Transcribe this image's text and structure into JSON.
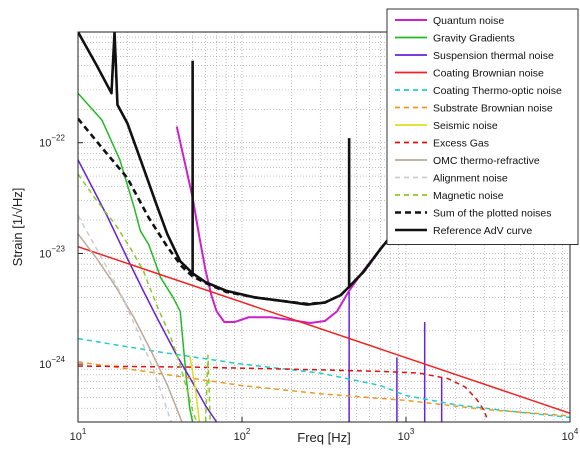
{
  "chart_data": {
    "type": "line",
    "title": "",
    "xlabel": "Freq [Hz]",
    "ylabel": "Strain [1/√Hz]",
    "x_scale": "log",
    "y_scale": "log",
    "xlim": [
      10,
      10000
    ],
    "ylim": [
      3e-25,
      1e-21
    ],
    "grid": true,
    "legend_position": "top-right",
    "x_ticks": [
      {
        "value": 10,
        "base": "10",
        "exp": "1"
      },
      {
        "value": 100,
        "base": "10",
        "exp": "2"
      },
      {
        "value": 1000,
        "base": "10",
        "exp": "3"
      },
      {
        "value": 10000,
        "base": "10",
        "exp": "4"
      }
    ],
    "y_ticks": [
      {
        "value": 1e-24,
        "base": "10",
        "exp": "−24"
      },
      {
        "value": 1e-23,
        "base": "10",
        "exp": "−23"
      },
      {
        "value": 1e-22,
        "base": "10",
        "exp": "−22"
      }
    ],
    "series": [
      {
        "name": "Quantum noise",
        "color": "#cc22cc",
        "width": 2.0,
        "dash": "",
        "points": [
          [
            40,
            1.4e-22
          ],
          [
            50,
            3.2e-23
          ],
          [
            55,
            1.4e-23
          ],
          [
            60,
            7e-24
          ],
          [
            65,
            4.2e-24
          ],
          [
            70,
            3e-24
          ],
          [
            78,
            2.4e-24
          ],
          [
            90,
            2.4e-24
          ],
          [
            110,
            2.65e-24
          ],
          [
            150,
            2.65e-24
          ],
          [
            200,
            2.5e-24
          ],
          [
            260,
            2.35e-24
          ],
          [
            320,
            2.45e-24
          ],
          [
            380,
            3e-24
          ],
          [
            450,
            4.6e-24
          ],
          [
            550,
            7e-24
          ],
          [
            700,
            1.1e-23
          ],
          [
            800,
            1.4e-23
          ]
        ]
      },
      {
        "name": "Gravity Gradients",
        "color": "#22bb22",
        "width": 1.5,
        "dash": "",
        "points": [
          [
            10,
            2.8e-22
          ],
          [
            14,
            1.6e-22
          ],
          [
            18,
            7e-23
          ],
          [
            22,
            2.6e-23
          ],
          [
            24,
            1.6e-23
          ],
          [
            27,
            1.2e-23
          ],
          [
            32,
            6e-24
          ],
          [
            38,
            4e-24
          ],
          [
            42,
            3e-24
          ],
          [
            44,
            1.4e-24
          ],
          [
            46,
            7e-25
          ],
          [
            48,
            4e-25
          ],
          [
            50,
            3e-25
          ]
        ]
      },
      {
        "name": "Suspension thermal noise",
        "color": "#6622dd",
        "width": 1.5,
        "dash": "",
        "points": [
          [
            10,
            7e-23
          ],
          [
            15,
            2.2e-23
          ],
          [
            20,
            9e-24
          ],
          [
            25,
            4.6e-24
          ],
          [
            30,
            2.7e-24
          ],
          [
            40,
            1.2e-24
          ],
          [
            50,
            6.8e-25
          ],
          [
            60,
            4.2e-25
          ],
          [
            70,
            3e-25
          ]
        ]
      },
      {
        "name": "Suspension thermal noise",
        "color": "#6622dd",
        "width": 1.5,
        "dash": "",
        "points": [
          [
            450,
            3e-25
          ],
          [
            450,
            4.5e-24
          ]
        ]
      },
      {
        "name": "Suspension thermal noise",
        "color": "#6622dd",
        "width": 1.5,
        "dash": "",
        "points": [
          [
            880,
            3e-25
          ],
          [
            880,
            1.15e-24
          ]
        ]
      },
      {
        "name": "Suspension thermal noise",
        "color": "#6622dd",
        "width": 1.5,
        "dash": "",
        "points": [
          [
            1300,
            3e-25
          ],
          [
            1300,
            2.4e-24
          ]
        ]
      },
      {
        "name": "Suspension thermal noise",
        "color": "#6622dd",
        "width": 1.5,
        "dash": "",
        "points": [
          [
            1650,
            3e-25
          ],
          [
            1650,
            7.5e-25
          ]
        ]
      },
      {
        "name": "Coating Brownian noise",
        "color": "#ee2222",
        "width": 1.5,
        "dash": "",
        "points": [
          [
            10,
            1.15e-23
          ],
          [
            10000,
            3.6e-25
          ]
        ]
      },
      {
        "name": "Coating Thermo-optic noise",
        "color": "#22cccc",
        "width": 1.5,
        "dash": "5,4",
        "points": [
          [
            10,
            1.7e-24
          ],
          [
            30,
            1.3e-24
          ],
          [
            100,
            1e-24
          ],
          [
            300,
            8.3e-25
          ],
          [
            700,
            6.4e-25
          ],
          [
            1000,
            5.2e-25
          ],
          [
            2000,
            4.3e-25
          ],
          [
            4000,
            3.8e-25
          ],
          [
            10000,
            3.3e-25
          ]
        ]
      },
      {
        "name": "Substrate Brownian noise",
        "color": "#ee9922",
        "width": 1.5,
        "dash": "5,4",
        "points": [
          [
            10,
            1.05e-24
          ],
          [
            30,
            8.3e-25
          ],
          [
            100,
            6.4e-25
          ],
          [
            300,
            5.4e-25
          ],
          [
            1000,
            4.7e-25
          ],
          [
            3000,
            3.9e-25
          ],
          [
            10000,
            3.4e-25
          ]
        ]
      },
      {
        "name": "Seismic noise",
        "color": "#dddd22",
        "width": 1.5,
        "dash": "",
        "points": [
          [
            48,
            1.2e-24
          ],
          [
            52,
            6e-25
          ],
          [
            55,
            3e-25
          ]
        ]
      },
      {
        "name": "Excess Gas",
        "color": "#dd1111",
        "width": 1.5,
        "dash": "5,4",
        "points": [
          [
            10,
            9.6e-25
          ],
          [
            50,
            9.4e-25
          ],
          [
            200,
            9e-25
          ],
          [
            700,
            8.6e-25
          ],
          [
            1200,
            8.3e-25
          ],
          [
            1800,
            7.4e-25
          ],
          [
            2300,
            6.2e-25
          ],
          [
            2700,
            4.8e-25
          ],
          [
            3000,
            3.8e-25
          ],
          [
            3100,
            3.3e-25
          ]
        ]
      },
      {
        "name": "OMC thermo-refractive",
        "color": "#bbaa99",
        "width": 1.5,
        "dash": "",
        "points": [
          [
            10,
            1.5e-23
          ],
          [
            13,
            9e-24
          ],
          [
            17,
            5e-24
          ],
          [
            22,
            2.6e-24
          ],
          [
            28,
            1.3e-24
          ],
          [
            35,
            6.5e-25
          ],
          [
            42,
            3.3e-25
          ],
          [
            43,
            3e-25
          ]
        ]
      },
      {
        "name": "Alignment noise",
        "color": "#cccccc",
        "width": 1.5,
        "dash": "5,4",
        "points": [
          [
            10,
            2.2e-23
          ],
          [
            14,
            9e-24
          ],
          [
            18,
            4.5e-24
          ],
          [
            23,
            2e-24
          ],
          [
            28,
            1e-24
          ],
          [
            33,
            5e-25
          ],
          [
            37,
            3e-25
          ]
        ]
      },
      {
        "name": "Magnetic noise",
        "color": "#88cc22",
        "width": 1.5,
        "dash": "5,4",
        "points": [
          [
            10,
            5.2e-23
          ],
          [
            13,
            3e-23
          ],
          [
            17,
            1.8e-23
          ],
          [
            21,
            1.1e-23
          ],
          [
            25,
            7e-24
          ],
          [
            27,
            5.2e-24
          ],
          [
            31,
            3.1e-24
          ],
          [
            36,
            1.9e-24
          ],
          [
            41,
            1.1e-24
          ],
          [
            46,
            6e-25
          ],
          [
            50,
            3.8e-25
          ],
          [
            53,
            3e-25
          ]
        ]
      },
      {
        "name": "Magnetic noise",
        "color": "#88cc22",
        "width": 1.5,
        "dash": "5,4",
        "points": [
          [
            60,
            3e-25
          ],
          [
            62,
            1.2e-24
          ],
          [
            64,
            3e-25
          ]
        ]
      },
      {
        "name": "Sum of the plotted noises",
        "color": "#111111",
        "width": 2.6,
        "dash": "6,4",
        "points": [
          [
            10,
            1.65e-22
          ],
          [
            14,
            9e-23
          ],
          [
            20,
            4.8e-23
          ],
          [
            27,
            2.1e-23
          ],
          [
            35,
            1.15e-23
          ],
          [
            43,
            7.6e-24
          ],
          [
            50,
            6.2e-24
          ],
          [
            60,
            5.4e-24
          ],
          [
            80,
            4.5e-24
          ],
          [
            120,
            4e-24
          ],
          [
            180,
            3.7e-24
          ],
          [
            250,
            3.5e-24
          ],
          [
            320,
            3.6e-24
          ],
          [
            400,
            4.2e-24
          ],
          [
            450,
            5e-24
          ],
          [
            550,
            6.8e-24
          ],
          [
            700,
            1.1e-23
          ],
          [
            800,
            1.4e-23
          ]
        ]
      },
      {
        "name": "Reference AdV curve",
        "color": "#111111",
        "width": 2.6,
        "dash": "",
        "points": [
          [
            10,
            1e-21
          ],
          [
            13,
            5e-22
          ],
          [
            16,
            2.8e-22
          ],
          [
            16.7,
            1e-21
          ],
          [
            17.4,
            2.2e-22
          ],
          [
            20,
            1.5e-22
          ],
          [
            25,
            6e-23
          ],
          [
            30,
            2.8e-23
          ],
          [
            35,
            1.5e-23
          ],
          [
            42,
            8.5e-24
          ],
          [
            50,
            6.6e-24
          ],
          [
            60,
            5.5e-24
          ],
          [
            80,
            4.6e-24
          ],
          [
            120,
            4e-24
          ],
          [
            180,
            3.7e-24
          ],
          [
            250,
            3.45e-24
          ],
          [
            320,
            3.6e-24
          ],
          [
            400,
            4.2e-24
          ],
          [
            450,
            5e-24
          ],
          [
            550,
            6.8e-24
          ],
          [
            700,
            1.1e-23
          ],
          [
            800,
            1.4e-23
          ]
        ]
      },
      {
        "name": "Reference AdV curve",
        "color": "#111111",
        "width": 2.6,
        "dash": "",
        "points": [
          [
            50,
            5.5e-22
          ],
          [
            50,
            6.2e-24
          ]
        ]
      },
      {
        "name": "Reference AdV curve",
        "color": "#111111",
        "width": 2.6,
        "dash": "",
        "points": [
          [
            450,
            1.1e-22
          ],
          [
            450,
            5e-24
          ]
        ]
      }
    ],
    "legend": [
      {
        "label": "Quantum noise",
        "color": "#cc22cc",
        "dash": "",
        "width": 2.0
      },
      {
        "label": "Gravity Gradients",
        "color": "#22bb22",
        "dash": "",
        "width": 1.8
      },
      {
        "label": "Suspension thermal noise",
        "color": "#6622dd",
        "dash": "",
        "width": 1.8
      },
      {
        "label": "Coating Brownian noise",
        "color": "#ee2222",
        "dash": "",
        "width": 1.8
      },
      {
        "label": "Coating Thermo-optic noise",
        "color": "#22cccc",
        "dash": "5,4",
        "width": 1.8
      },
      {
        "label": "Substrate Brownian noise",
        "color": "#ee9922",
        "dash": "5,4",
        "width": 1.8
      },
      {
        "label": "Seismic noise",
        "color": "#dddd22",
        "dash": "",
        "width": 1.8
      },
      {
        "label": "Excess Gas",
        "color": "#dd1111",
        "dash": "5,4",
        "width": 1.8
      },
      {
        "label": "OMC thermo-refractive",
        "color": "#bbaa99",
        "dash": "",
        "width": 1.8
      },
      {
        "label": "Alignment noise",
        "color": "#cccccc",
        "dash": "5,4",
        "width": 1.8
      },
      {
        "label": "Magnetic noise",
        "color": "#88cc22",
        "dash": "5,4",
        "width": 1.8
      },
      {
        "label": "Sum of the plotted noises",
        "color": "#111111",
        "dash": "6,4",
        "width": 2.6
      },
      {
        "label": "Reference AdV curve",
        "color": "#111111",
        "dash": "",
        "width": 2.6
      }
    ]
  }
}
